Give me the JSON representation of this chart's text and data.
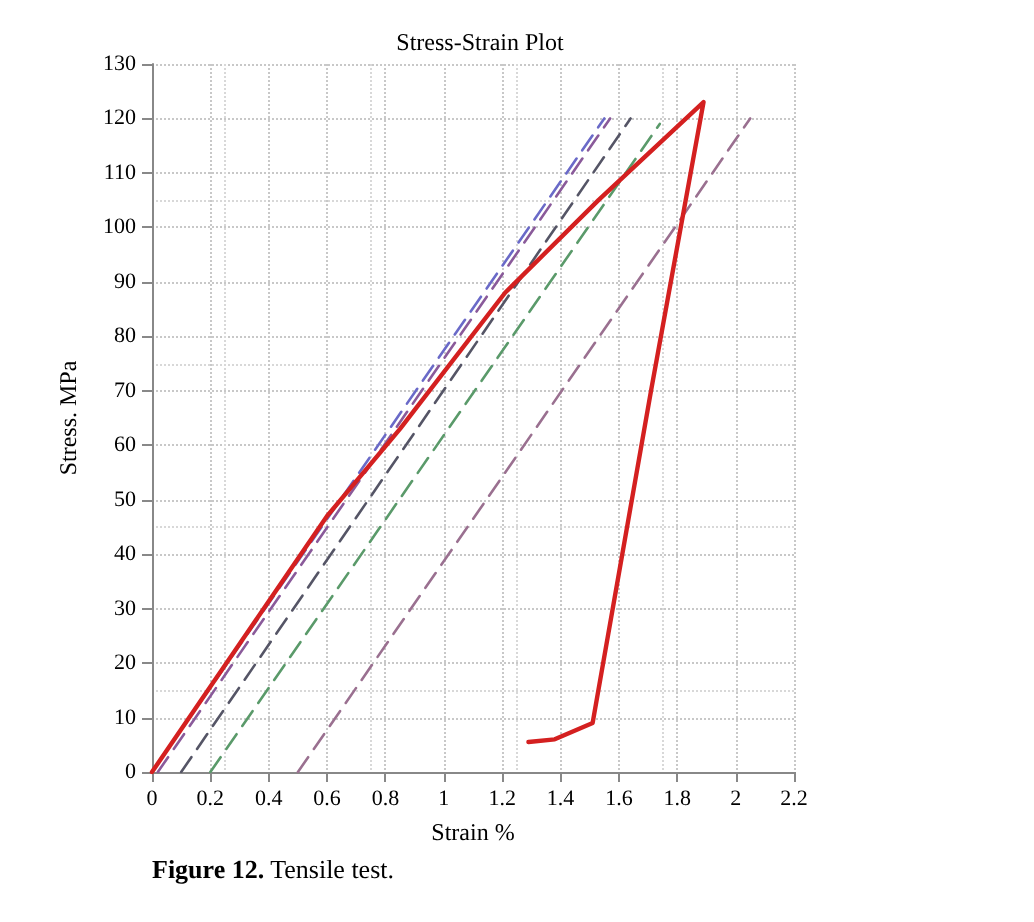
{
  "chart_data": {
    "type": "line",
    "title": "Stress-Strain Plot",
    "xlabel": "Strain %",
    "ylabel": "Stress. MPa",
    "annotations": [
      "Figure 12. Tensile test."
    ],
    "xlim": [
      0,
      2.2
    ],
    "xticks": [
      0,
      0.2,
      0.4,
      0.6,
      0.8,
      1,
      1.2,
      1.4,
      1.6,
      1.8,
      2,
      2.2
    ],
    "ylim": [
      0,
      130
    ],
    "yticks": [
      0,
      10,
      20,
      30,
      40,
      50,
      60,
      70,
      80,
      90,
      100,
      110,
      120,
      130
    ],
    "grid": true,
    "marker": "none",
    "series": [
      {
        "color": "#6a6ac8",
        "line_style": "dashed",
        "x": [
          0,
          1.55
        ],
        "values": [
          0,
          120
        ]
      },
      {
        "color": "#8a5a9a",
        "line_style": "dashed",
        "x": [
          0.02,
          1.57
        ],
        "values": [
          0,
          120
        ]
      },
      {
        "color": "#555566",
        "line_style": "dashed",
        "x": [
          0.1,
          1.64
        ],
        "values": [
          0,
          120
        ]
      },
      {
        "color": "#5a9a6a",
        "line_style": "dashed",
        "x": [
          0.2,
          1.74
        ],
        "values": [
          0,
          119
        ]
      },
      {
        "color": "#9a7090",
        "line_style": "dashed",
        "x": [
          0.5,
          2.05
        ],
        "values": [
          0,
          120
        ]
      },
      {
        "color": "#d42020",
        "line_style": "solid",
        "x": [
          0,
          0.6,
          0.85,
          1.21,
          1.53,
          1.89,
          1.71,
          1.51,
          1.38,
          1.29
        ],
        "values": [
          0,
          47,
          63,
          88,
          105,
          123,
          70,
          9,
          6,
          5.5
        ]
      }
    ]
  }
}
